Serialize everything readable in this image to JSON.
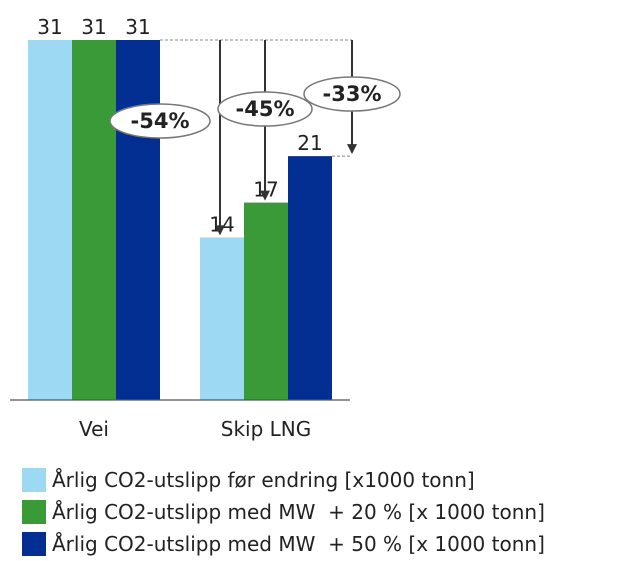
{
  "chart_data": {
    "type": "bar",
    "categories": [
      "Vei",
      "Skip LNG"
    ],
    "series": [
      {
        "name": "Årlig CO2-utslipp før endring [x1000 tonn]",
        "values": [
          31,
          14
        ],
        "color": "#9dd9f3"
      },
      {
        "name": "Årlig CO2-utslipp med MW  + 20 % [x 1000 tonn]",
        "values": [
          31,
          17
        ],
        "color": "#3a9a37"
      },
      {
        "name": "Årlig CO2-utslipp med MW  + 50 % [x 1000 tonn]",
        "values": [
          31,
          21
        ],
        "color": "#032f93"
      }
    ],
    "data_labels": [
      [
        "31",
        "31",
        "31"
      ],
      [
        "14",
        "17",
        "21"
      ]
    ],
    "annotations": [
      "-54%",
      "-45%",
      "-33%"
    ],
    "ylim": [
      0,
      31
    ],
    "grid": false,
    "legend_position": "bottom",
    "title": "",
    "xlabel": "",
    "ylabel": ""
  }
}
